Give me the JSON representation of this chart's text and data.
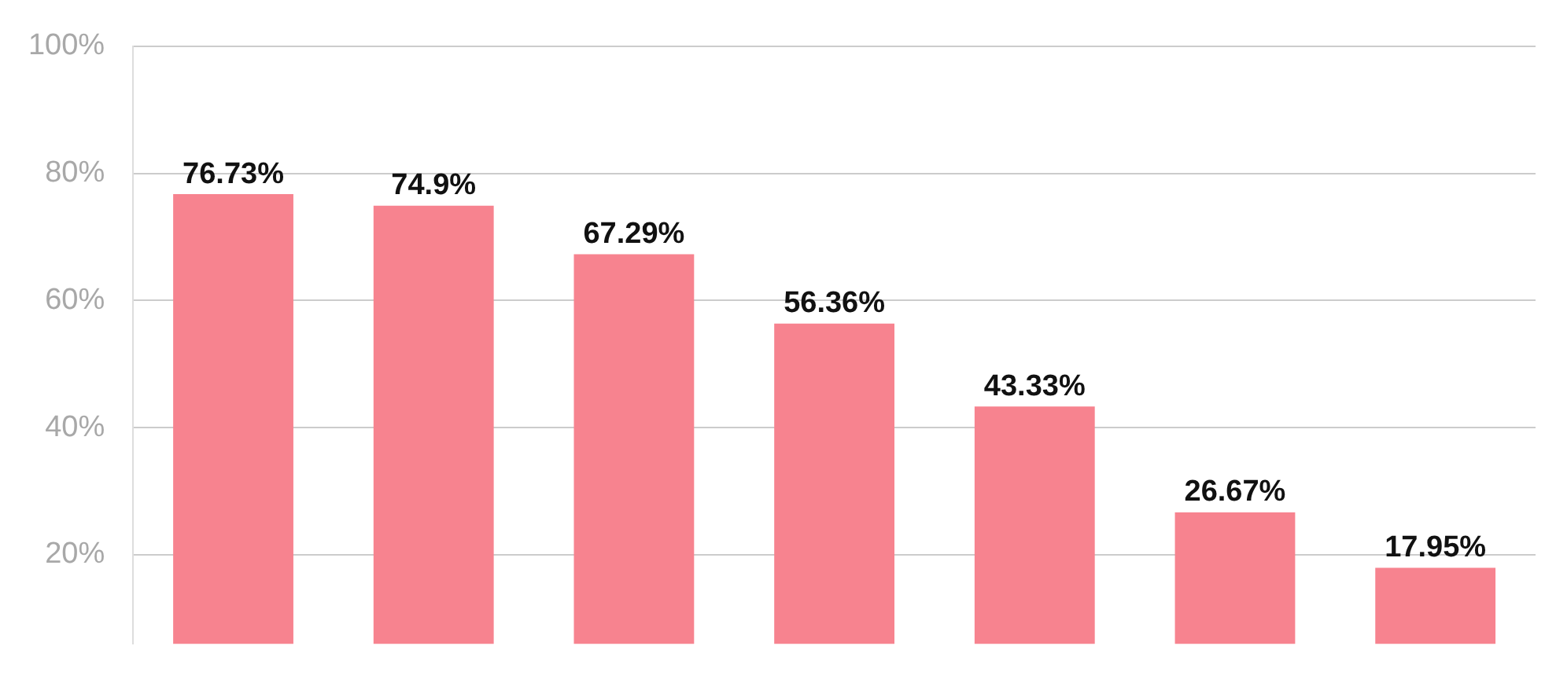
{
  "chart_data": {
    "type": "bar",
    "categories": [
      null,
      null,
      null,
      null,
      null,
      null,
      null
    ],
    "values": [
      76.73,
      74.9,
      67.29,
      56.36,
      43.33,
      26.67,
      17.95
    ],
    "value_labels": [
      "76.73%",
      "74.9%",
      "67.29%",
      "56.36%",
      "43.33%",
      "26.67%",
      "17.95%"
    ],
    "color": "#f7838f",
    "ylim": [
      6,
      100
    ],
    "yticks": [
      {
        "value": 20,
        "label": "20%"
      },
      {
        "value": 40,
        "label": "40%"
      },
      {
        "value": 60,
        "label": "60%"
      },
      {
        "value": 80,
        "label": "80%"
      },
      {
        "value": 100,
        "label": "100%"
      }
    ],
    "grid": "y",
    "legend": false,
    "tick_labels": "y"
  }
}
